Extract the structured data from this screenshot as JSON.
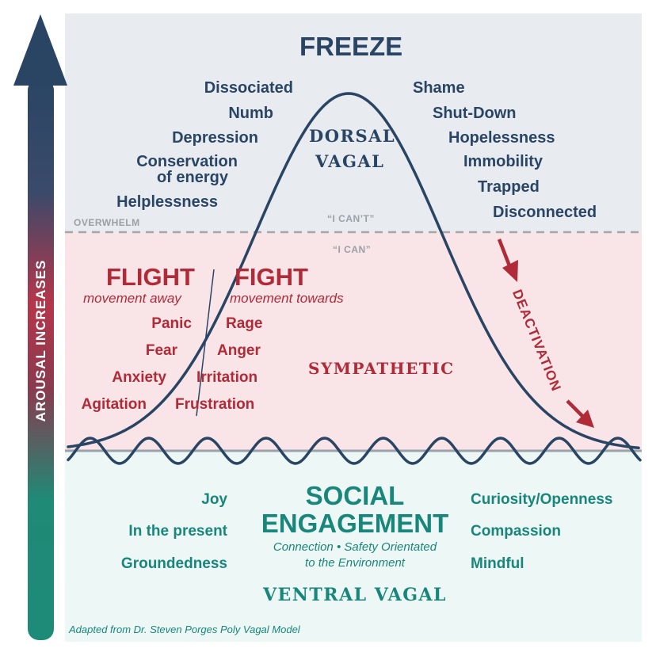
{
  "zones": {
    "freeze_title": "FREEZE",
    "dorsal_line1": "DORSAL",
    "dorsal_line2": "VAGAL",
    "sympathetic": "SYMPATHETIC",
    "social_line1": "SOCIAL",
    "social_line2": "ENGAGEMENT",
    "social_sub1": "Connection • Safety Orientated",
    "social_sub2": "to the Environment",
    "ventral": "VENTRAL VAGAL"
  },
  "freeze_left": [
    "Dissociated",
    "Numb",
    "Depression",
    "Conservation",
    "of energy",
    "Helplessness"
  ],
  "freeze_right": [
    "Shame",
    "Shut-Down",
    "Hopelessness",
    "Immobility",
    "Trapped",
    "Disconnected"
  ],
  "threshold": {
    "overwhelm": "OVERWHELM",
    "i_cant": "“I CAN’T”",
    "i_can": "“I CAN”"
  },
  "flight": {
    "title": "FLIGHT",
    "subtitle": "movement away",
    "items": [
      "Panic",
      "Fear",
      "Anxiety",
      "Agitation"
    ]
  },
  "fight": {
    "title": "FIGHT",
    "subtitle": "movement towards",
    "items": [
      "Rage",
      "Anger",
      "Irritation",
      "Frustration"
    ]
  },
  "deactivation": "DEACTIVATION",
  "ventral_left": [
    "Joy",
    "In the present",
    "Groundedness"
  ],
  "ventral_right": [
    "Curiosity/Openness",
    "Compassion",
    "Mindful"
  ],
  "arousal": "AROUSAL INCREASES",
  "credit": "Adapted from Dr. Steven Porges Poly Vagal Model",
  "colors": {
    "navy": "#2a4564",
    "red": "#b02a37",
    "teal": "#18867a",
    "freeze_bg": "#e8ecf0",
    "sympathetic_bg": "#f9e5e8",
    "ventral_bg": "#edf7f6"
  }
}
